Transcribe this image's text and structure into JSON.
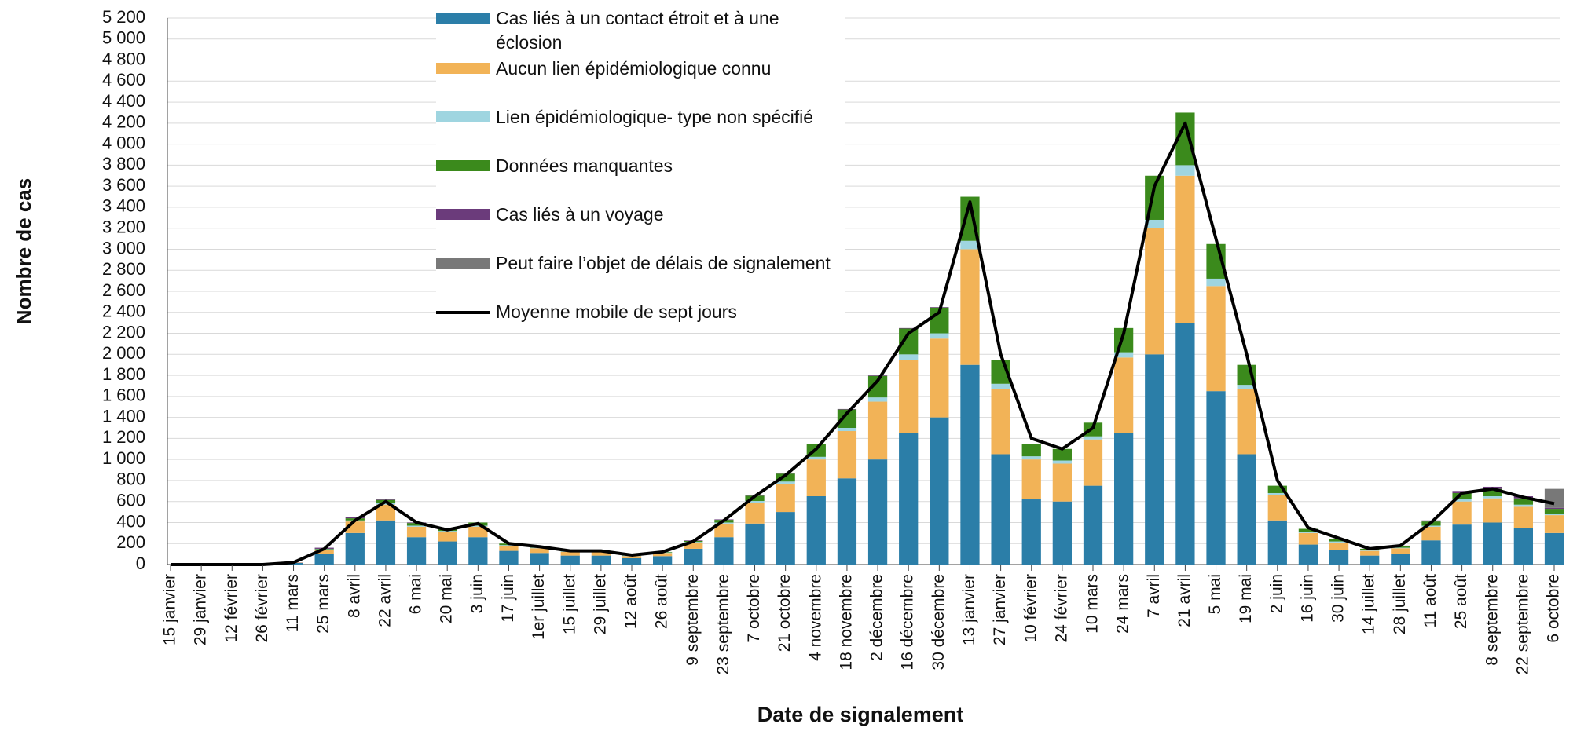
{
  "chart_data": {
    "type": "bar",
    "x_label": "Date de signalement",
    "y_label": "Nombre de cas",
    "categories": [
      "15 janvier",
      "29 janvier",
      "12 février",
      "26 février",
      "11 mars",
      "25 mars",
      "8 avril",
      "22 avril",
      "6 mai",
      "20 mai",
      "3 juin",
      "17 juin",
      "1er juillet",
      "15 juillet",
      "29 juillet",
      "12 août",
      "26 août",
      "9 septembre",
      "23 septembre",
      "7 octobre",
      "21 octobre",
      "4 novembre",
      "18 novembre",
      "2 décembre",
      "16 décembre",
      "30 décembre",
      "13 janvier",
      "27 janvier",
      "10 février",
      "24 février",
      "10 mars",
      "24 mars",
      "7 avril",
      "21 avril",
      "5 mai",
      "19 mai",
      "2 juin",
      "16 juin",
      "30 juin",
      "14 juillet",
      "28 juillet",
      "11 août",
      "25 août",
      "8 septembre",
      "22 septembre",
      "6 octobre"
    ],
    "series": [
      {
        "name": "Cas liés à un contact étroit et à une éclosion",
        "color": "#2b7ea8",
        "values": [
          0,
          0,
          0,
          0,
          15,
          100,
          300,
          420,
          260,
          220,
          260,
          130,
          110,
          85,
          85,
          60,
          80,
          150,
          260,
          390,
          500,
          650,
          820,
          1000,
          1250,
          1400,
          1900,
          1050,
          620,
          600,
          750,
          1250,
          2000,
          2300,
          1650,
          1050,
          420,
          190,
          135,
          85,
          100,
          230,
          380,
          400,
          350,
          300
        ]
      },
      {
        "name": "Aucun lien épidémiologique connu",
        "color": "#f2b357",
        "values": [
          0,
          0,
          0,
          0,
          3,
          40,
          110,
          150,
          100,
          90,
          100,
          50,
          45,
          35,
          35,
          20,
          30,
          60,
          130,
          200,
          270,
          350,
          450,
          550,
          700,
          750,
          1100,
          620,
          380,
          360,
          440,
          720,
          1200,
          1400,
          1000,
          620,
          240,
          110,
          75,
          45,
          55,
          130,
          220,
          230,
          200,
          170
        ]
      },
      {
        "name": "Lien épidémiologique- type non spécifié",
        "color": "#9fd5e0",
        "values": [
          0,
          0,
          0,
          0,
          0,
          5,
          10,
          15,
          10,
          10,
          10,
          5,
          5,
          5,
          5,
          5,
          5,
          5,
          10,
          15,
          20,
          25,
          30,
          40,
          50,
          50,
          80,
          50,
          30,
          30,
          30,
          50,
          80,
          100,
          70,
          40,
          20,
          10,
          10,
          5,
          5,
          10,
          20,
          20,
          20,
          15
        ]
      },
      {
        "name": "Données manquantes",
        "color": "#3b8a1c",
        "values": [
          0,
          0,
          0,
          0,
          0,
          5,
          20,
          30,
          25,
          20,
          30,
          15,
          10,
          5,
          5,
          5,
          5,
          10,
          25,
          50,
          75,
          120,
          175,
          205,
          245,
          245,
          420,
          230,
          120,
          110,
          130,
          230,
          420,
          500,
          330,
          190,
          70,
          30,
          20,
          15,
          15,
          40,
          60,
          70,
          60,
          45
        ]
      },
      {
        "name": "Cas liés à un voyage",
        "color": "#6b3b7b",
        "values": [
          0,
          0,
          0,
          0,
          2,
          10,
          10,
          5,
          5,
          0,
          0,
          0,
          0,
          0,
          0,
          0,
          0,
          5,
          5,
          5,
          5,
          5,
          5,
          5,
          5,
          5,
          0,
          0,
          0,
          0,
          0,
          0,
          0,
          0,
          0,
          0,
          0,
          0,
          0,
          0,
          5,
          10,
          20,
          20,
          20,
          10
        ]
      },
      {
        "name": "Peut faire l’objet de délais de signalement",
        "color": "#787878",
        "values": [
          0,
          0,
          0,
          0,
          0,
          0,
          0,
          0,
          0,
          0,
          0,
          0,
          0,
          0,
          0,
          0,
          0,
          0,
          0,
          0,
          0,
          0,
          0,
          0,
          0,
          0,
          0,
          0,
          0,
          0,
          0,
          0,
          0,
          0,
          0,
          0,
          0,
          0,
          0,
          0,
          0,
          0,
          0,
          0,
          0,
          180
        ]
      }
    ],
    "line": {
      "name": "Moyenne mobile de sept jours",
      "color": "#000000",
      "values": [
        0,
        0,
        0,
        0,
        20,
        150,
        420,
        600,
        400,
        330,
        390,
        200,
        170,
        130,
        130,
        90,
        120,
        220,
        420,
        650,
        850,
        1100,
        1440,
        1750,
        2200,
        2400,
        3450,
        2000,
        1200,
        1100,
        1300,
        2200,
        3600,
        4200,
        3100,
        2000,
        800,
        350,
        250,
        150,
        180,
        400,
        680,
        720,
        640,
        580
      ]
    },
    "ylim": [
      0,
      5200
    ],
    "yticks": [
      0,
      200,
      400,
      600,
      800,
      {
        "value": 1000,
        "label": "1 000"
      },
      {
        "value": 1200,
        "label": "1 200"
      },
      {
        "value": 1400,
        "label": "1 400"
      },
      {
        "value": 1600,
        "label": "1 600"
      },
      {
        "value": 1800,
        "label": "1 800"
      },
      {
        "value": 2000,
        "label": "2 000"
      },
      {
        "value": 2200,
        "label": "2 200"
      },
      {
        "value": 2400,
        "label": "2 400"
      },
      {
        "value": 2600,
        "label": "2 600"
      },
      {
        "value": 2800,
        "label": "2 800"
      },
      {
        "value": 3000,
        "label": "3 000"
      },
      {
        "value": 3200,
        "label": "3 200"
      },
      {
        "value": 3400,
        "label": "3 400"
      },
      {
        "value": 3600,
        "label": "3 600"
      },
      {
        "value": 3800,
        "label": "3 800"
      },
      {
        "value": 4000,
        "label": "4 000"
      },
      {
        "value": 4200,
        "label": "4 200"
      },
      {
        "value": 4400,
        "label": "4 400"
      },
      {
        "value": 4600,
        "label": "4 600"
      },
      {
        "value": 4800,
        "label": "4 800"
      },
      {
        "value": 5000,
        "label": "5 000"
      },
      {
        "value": 5200,
        "label": "5 200"
      }
    ],
    "grid": true
  }
}
